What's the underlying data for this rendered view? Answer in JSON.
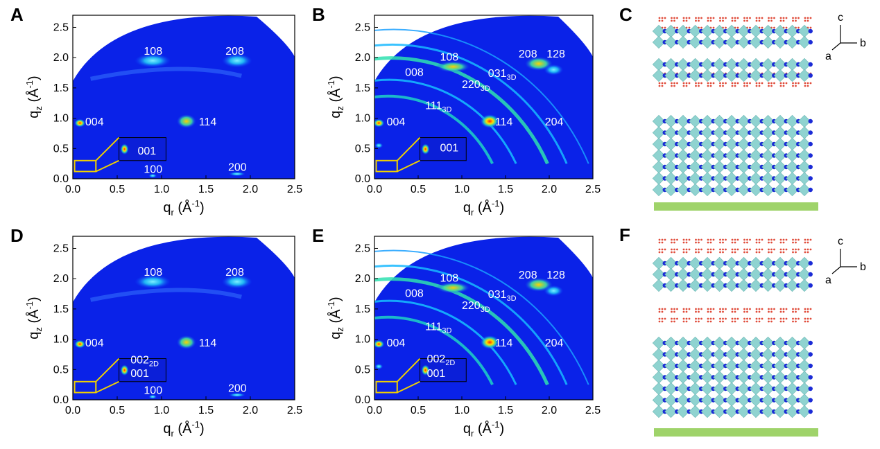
{
  "panels": [
    {
      "letter": "A",
      "type": "giwaxs",
      "peaks": [
        "108",
        "208",
        "004",
        "114",
        "001",
        "100",
        "200"
      ],
      "arc": false
    },
    {
      "letter": "B",
      "type": "giwaxs",
      "peaks": [
        "108",
        "208",
        "128",
        "008",
        "031",
        "220",
        "111",
        "004",
        "114",
        "204",
        "001"
      ],
      "arc": true
    },
    {
      "letter": "C",
      "type": "structure",
      "axes": {
        "c": "c",
        "b": "b",
        "a": "a"
      }
    },
    {
      "letter": "D",
      "type": "giwaxs",
      "peaks": [
        "108",
        "208",
        "004",
        "114",
        "002",
        "001",
        "100",
        "200"
      ],
      "arc": false
    },
    {
      "letter": "E",
      "type": "giwaxs",
      "peaks": [
        "108",
        "208",
        "128",
        "008",
        "031",
        "220",
        "111",
        "004",
        "114",
        "204",
        "002",
        "001"
      ],
      "arc": true
    },
    {
      "letter": "F",
      "type": "structure",
      "axes": {
        "c": "c",
        "b": "b",
        "a": "a"
      }
    }
  ],
  "axes": {
    "xlabel_main": "q",
    "xlabel_sub": "r",
    "xlabel_unit": " (Å",
    "xlabel_exp": "-1",
    "xlabel_close": ")",
    "ylabel_main": "q",
    "ylabel_sub": "z",
    "ylabel_unit": " (Å",
    "ylabel_exp": "-1",
    "ylabel_close": ")",
    "xticks": [
      "0.0",
      "0.5",
      "1.0",
      "1.5",
      "2.0",
      "2.5"
    ],
    "yticks": [
      "0.0",
      "0.5",
      "1.0",
      "1.5",
      "2.0",
      "2.5"
    ],
    "xlim": [
      0,
      2.5
    ],
    "ylim": [
      0,
      2.7
    ]
  },
  "subscripts": {
    "3D": "3D",
    "2D": "2D"
  },
  "colors": {
    "background": "#0a22e8",
    "bright": "#19c3ff",
    "hot": "#ff2a00",
    "inset_box": "#f0d000",
    "substrate": "#9fd36a",
    "octahedron": "#8fd3d0",
    "cation": "#1b2bd6",
    "organic": "#e04b3a"
  }
}
